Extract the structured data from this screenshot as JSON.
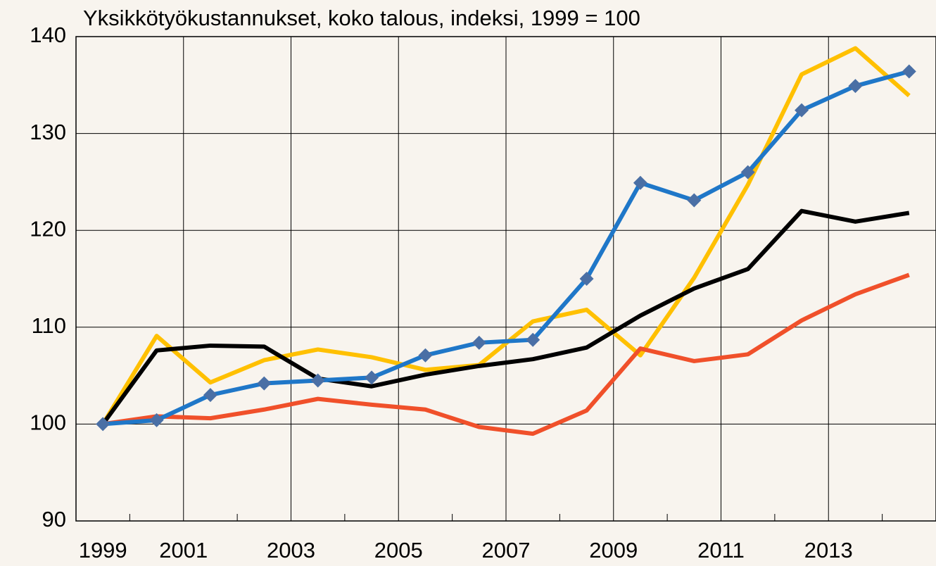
{
  "chart_data": {
    "type": "line",
    "title": "Yksikkötyökustannukset, koko talous, indeksi, 1999 = 100",
    "categories": [
      "1999",
      null,
      "2001",
      null,
      "2003",
      null,
      "2005",
      null,
      "2007",
      null,
      "2009",
      null,
      "2011",
      null,
      "2013",
      null
    ],
    "series": [
      {
        "color": "#ffc000",
        "values": [
          100,
          109.1,
          104.3,
          106.6,
          107.7,
          106.9,
          105.6,
          106.1,
          110.6,
          111.8,
          107.1,
          115.1,
          124.7,
          136.1,
          138.8,
          133.9
        ]
      },
      {
        "color": "#000000",
        "values": [
          100,
          107.6,
          108.1,
          108.0,
          104.7,
          103.9,
          105.1,
          106.0,
          106.7,
          107.9,
          111.2,
          114.0,
          116.0,
          122.0,
          120.9,
          121.8
        ]
      },
      {
        "color": "#f0502a",
        "values": [
          100,
          100.8,
          100.6,
          101.5,
          102.6,
          102.0,
          101.5,
          99.7,
          99.0,
          101.4,
          107.8,
          106.5,
          107.2,
          110.7,
          113.4,
          115.4
        ]
      },
      {
        "color": "#1f77c8",
        "marker": "diamond",
        "marker_color": "#4a6fa5",
        "values": [
          100,
          100.4,
          103.0,
          104.2,
          104.5,
          104.8,
          107.1,
          108.4,
          108.7,
          115.0,
          124.9,
          123.1,
          126.0,
          132.4,
          134.9,
          136.4
        ]
      }
    ],
    "ylim": [
      90,
      140
    ],
    "yticks": [
      90,
      100,
      110,
      120,
      130,
      140
    ],
    "grid": true
  }
}
